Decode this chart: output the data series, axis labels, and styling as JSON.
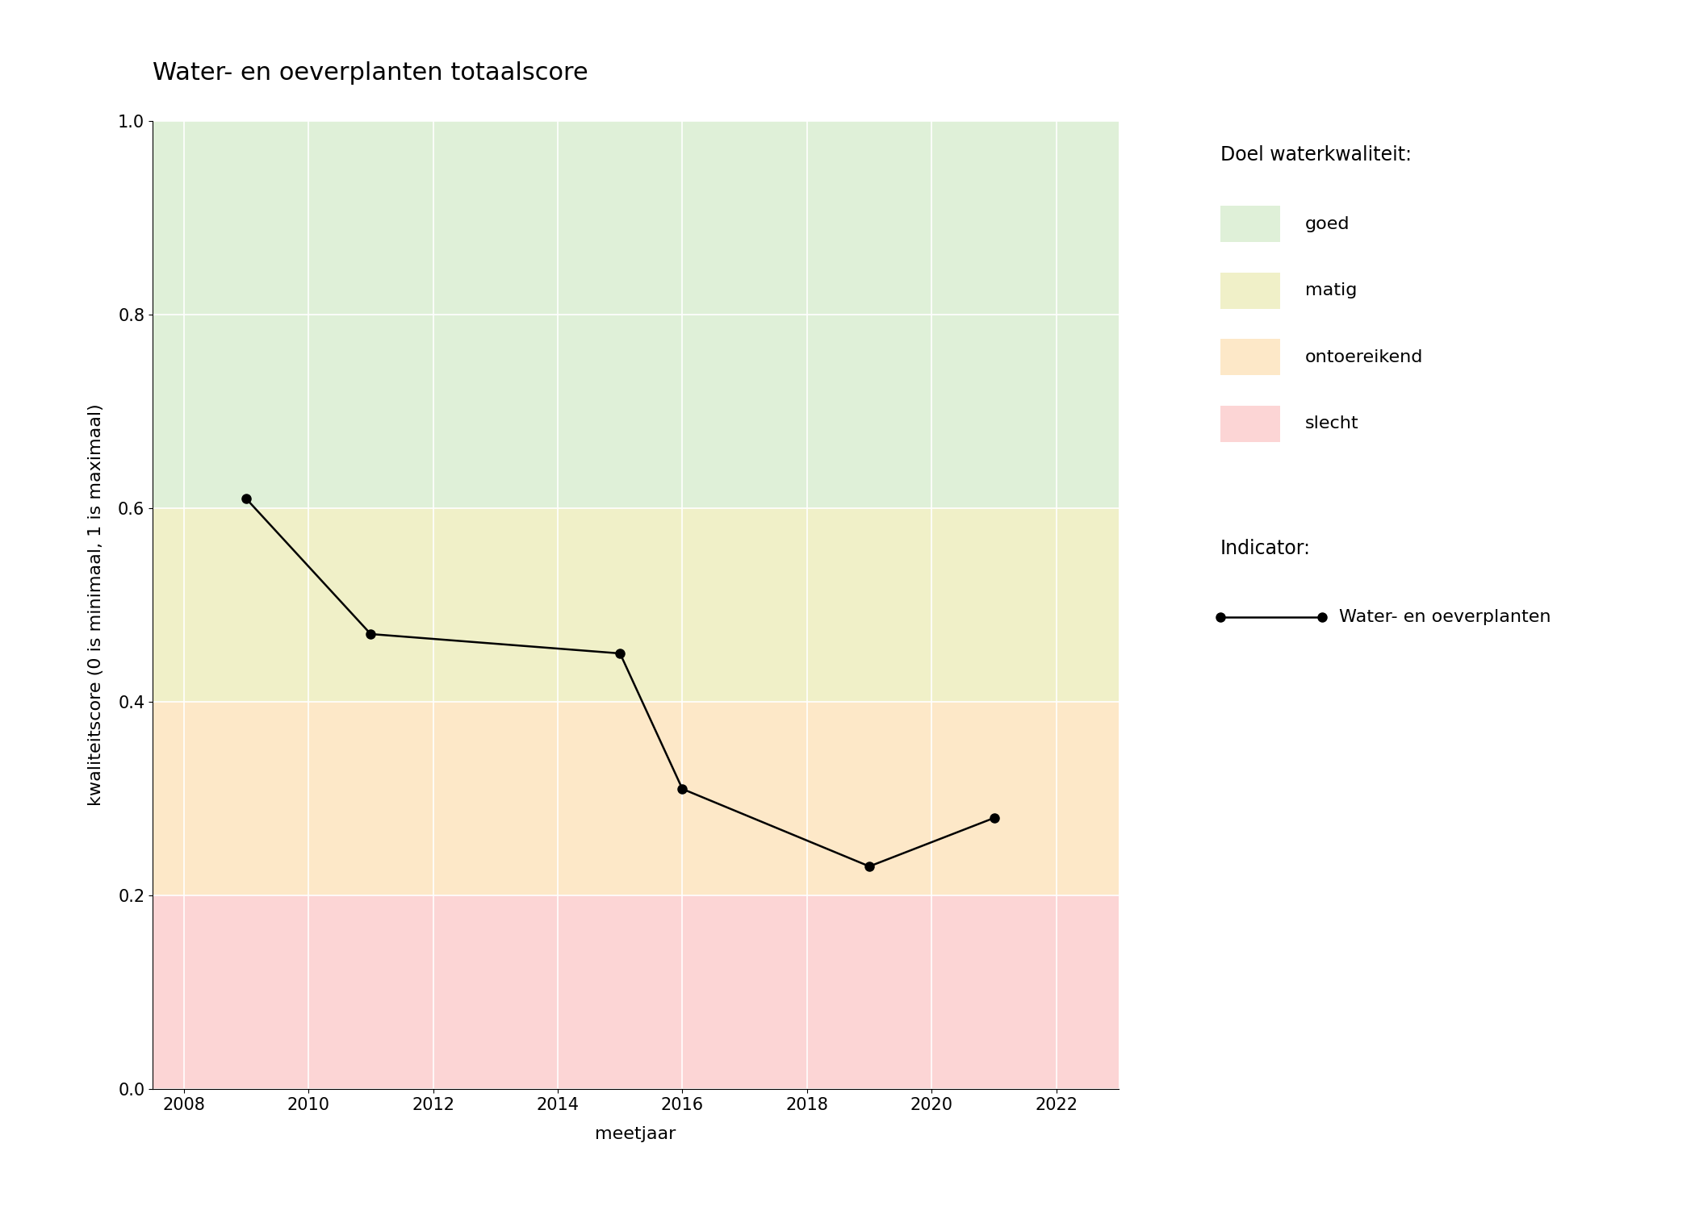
{
  "title": "Water- en oeverplanten totaalscore",
  "xlabel": "meetjaar",
  "ylabel": "kwaliteitscore (0 is minimaal, 1 is maximaal)",
  "xlim": [
    2007.5,
    2023.0
  ],
  "ylim": [
    0.0,
    1.0
  ],
  "xticks": [
    2008,
    2010,
    2012,
    2014,
    2016,
    2018,
    2020,
    2022
  ],
  "yticks": [
    0.0,
    0.2,
    0.4,
    0.6,
    0.8,
    1.0
  ],
  "years": [
    2009,
    2011,
    2015,
    2016,
    2019,
    2021
  ],
  "values": [
    0.61,
    0.47,
    0.45,
    0.31,
    0.23,
    0.28
  ],
  "line_color": "#000000",
  "marker": "o",
  "markersize": 8,
  "linewidth": 1.8,
  "bg_color_good": "#dff0d8",
  "bg_color_moderate": "#f0f0c8",
  "bg_color_insufficient": "#fde8c8",
  "bg_color_bad": "#fcd5d5",
  "good_min": 0.6,
  "moderate_min": 0.4,
  "insufficient_min": 0.2,
  "bad_min": 0.0,
  "legend_title_doel": "Doel waterkwaliteit:",
  "legend_label_good": "goed",
  "legend_label_moderate": "matig",
  "legend_label_insufficient": "ontoereikend",
  "legend_label_bad": "slecht",
  "legend_title_indicator": "Indicator:",
  "legend_label_indicator": "Water- en oeverplanten",
  "grid_color": "#ffffff",
  "grid_linewidth": 1.2,
  "figure_bg": "#ffffff",
  "title_fontsize": 22,
  "axis_label_fontsize": 16,
  "tick_fontsize": 15,
  "legend_fontsize": 16,
  "legend_title_fontsize": 17
}
